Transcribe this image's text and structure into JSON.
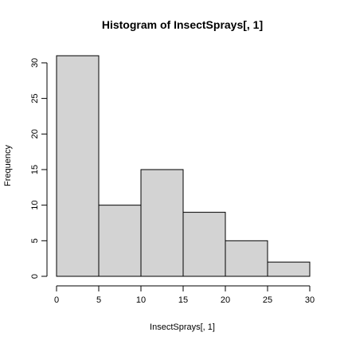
{
  "chart_data": {
    "type": "bar",
    "title": "Histogram of InsectSprays[, 1]",
    "xlabel": "InsectSprays[, 1]",
    "ylabel": "Frequency",
    "bins": [
      {
        "x0": 0,
        "x1": 5,
        "count": 31
      },
      {
        "x0": 5,
        "x1": 10,
        "count": 10
      },
      {
        "x0": 10,
        "x1": 15,
        "count": 15
      },
      {
        "x0": 15,
        "x1": 20,
        "count": 9
      },
      {
        "x0": 20,
        "x1": 25,
        "count": 5
      },
      {
        "x0": 25,
        "x1": 30,
        "count": 2
      }
    ],
    "xlim": [
      0,
      30
    ],
    "ylim": [
      0,
      31
    ],
    "x_ticks": [
      0,
      5,
      10,
      15,
      20,
      25,
      30
    ],
    "y_ticks": [
      0,
      5,
      10,
      15,
      20,
      25,
      30
    ],
    "grid": false,
    "legend": "none",
    "colors": {
      "bar_fill": "#d3d3d3",
      "bar_stroke": "#000000",
      "axis": "#000000",
      "background": "#ffffff"
    }
  }
}
